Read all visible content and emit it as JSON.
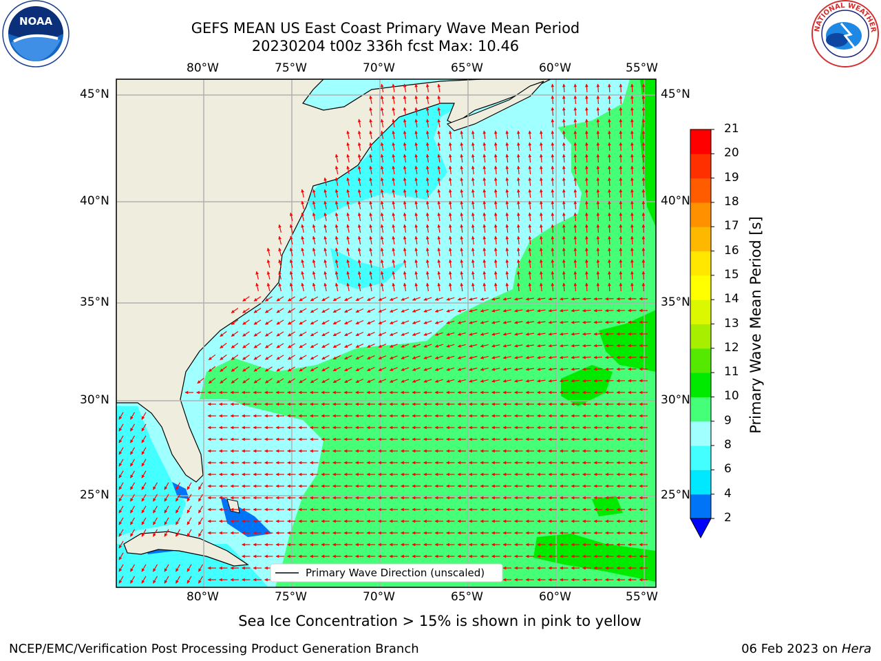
{
  "header": {
    "title_line1": "GEFS MEAN US East Coast Primary Wave Mean Period",
    "title_line2": "20230204 t00z 336h fcst   Max: 10.46"
  },
  "logos": {
    "left": {
      "name": "noaa-logo",
      "text": "NOAA"
    },
    "right": {
      "name": "nws-logo",
      "text": "NATIONAL WEATHER SERVICE"
    }
  },
  "map": {
    "lon_labels": [
      "80°W",
      "75°W",
      "70°W",
      "65°W",
      "60°W",
      "55°W"
    ],
    "lat_labels": [
      "45°N",
      "40°N",
      "35°N",
      "30°N",
      "25°N"
    ],
    "legend_label": "Primary Wave Direction (unscaled)"
  },
  "colorbar": {
    "label": "Primary Wave Mean Period [s]",
    "ticks": [
      "2",
      "4",
      "6",
      "8",
      "9",
      "10",
      "11",
      "12",
      "13",
      "14",
      "15",
      "16",
      "17",
      "18",
      "19",
      "20",
      "21"
    ],
    "colors": [
      "#0074f7",
      "#00e8ff",
      "#44ffff",
      "#a0ffff",
      "#44ff77",
      "#00ea00",
      "#55e800",
      "#a8ee00",
      "#dcf800",
      "#ffff00",
      "#ffe700",
      "#ffb800",
      "#ff9000",
      "#ff5c00",
      "#ff3000",
      "#ff0000"
    ],
    "extend_color": "#0000ff"
  },
  "footer": {
    "note": "Sea Ice Concentration > 15% is shown in pink to yellow",
    "credit": "NCEP/EMC/Verification Post Processing Product Generation Branch",
    "date": "06 Feb 2023 on ",
    "machine": "Hera"
  }
}
